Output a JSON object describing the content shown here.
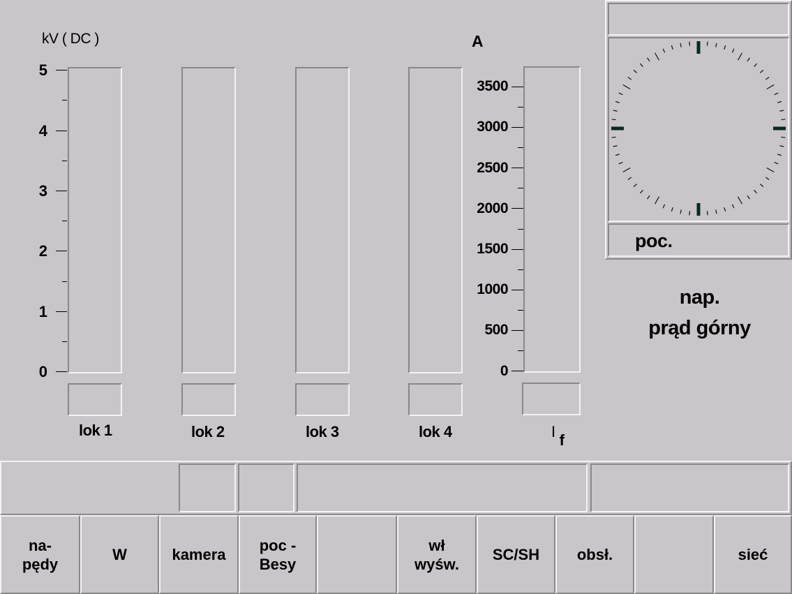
{
  "left_panel": {
    "unit_label": "kV ( DC )",
    "axis_values": [
      "5",
      "4",
      "3",
      "2",
      "1",
      "0"
    ],
    "bars": [
      {
        "label": "lok 1",
        "value": 0
      },
      {
        "label": "lok 2",
        "value": 0
      },
      {
        "label": "lok 3",
        "value": 0
      },
      {
        "label": "lok 4",
        "value": 0
      }
    ]
  },
  "current_panel": {
    "unit_label": "A",
    "axis_values": [
      "3500",
      "3000",
      "2500",
      "2000",
      "1500",
      "1000",
      "500",
      "0"
    ],
    "bar_label_main": "I",
    "bar_label_sub": "f",
    "value": 0
  },
  "clock_panel": {
    "top_field": "",
    "bottom_label": "poc."
  },
  "info": {
    "line1": "nap.",
    "line2": "prąd górny"
  },
  "status_bar": {
    "fields": [
      "",
      "",
      "",
      "",
      ""
    ]
  },
  "buttons": [
    {
      "line1": "na-",
      "line2": "pędy"
    },
    {
      "line1": "W",
      "line2": ""
    },
    {
      "line1": "kamera",
      "line2": ""
    },
    {
      "line1": "poc -",
      "line2": "Besy"
    },
    {
      "line1": "",
      "line2": ""
    },
    {
      "line1": "wł",
      "line2": "wyśw."
    },
    {
      "line1": "SC/SH",
      "line2": ""
    },
    {
      "line1": "obsł.",
      "line2": ""
    },
    {
      "line1": "",
      "line2": ""
    },
    {
      "line1": "sieć",
      "line2": ""
    }
  ]
}
